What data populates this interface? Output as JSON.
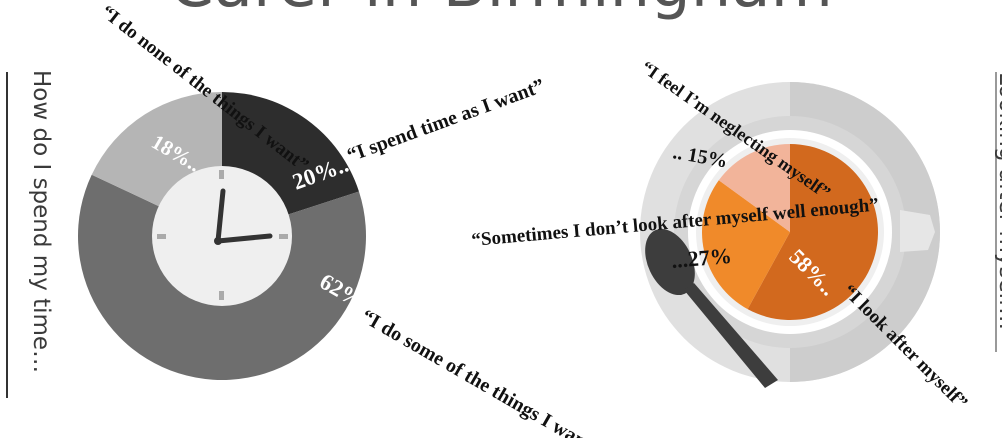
{
  "page": {
    "title_fragment": "Carer in Birmingham"
  },
  "chart_data": [
    {
      "type": "pie",
      "title": "How do I spend my time…",
      "slices": [
        {
          "label": "“I spend time as I want”",
          "percent_label": "20%..",
          "value": 20,
          "color": "#2d2d2d"
        },
        {
          "label": "“I do some of the things I want”",
          "percent_label": "62%",
          "value": 62,
          "color": "#6e6e6e"
        },
        {
          "label": "“I do none of the things I want”",
          "percent_label": "18%..",
          "value": 18,
          "color": "#b5b5b5"
        }
      ],
      "center_icon": "clock-icon"
    },
    {
      "type": "pie",
      "title": "Looking after myself…",
      "slices": [
        {
          "label": "“I look after myself”",
          "percent_label": "58%..",
          "value": 58,
          "color": "#d2691e"
        },
        {
          "label": "“Sometimes I don’t look after myself well enough”",
          "percent_label": "...27%",
          "value": 27,
          "color": "#f08a2a"
        },
        {
          "label": "“I feel I’m neglecting myself”",
          "percent_label": ".. 15%",
          "value": 15,
          "color": "#f2b49a"
        }
      ],
      "center_icon": "teacup-icon"
    }
  ]
}
